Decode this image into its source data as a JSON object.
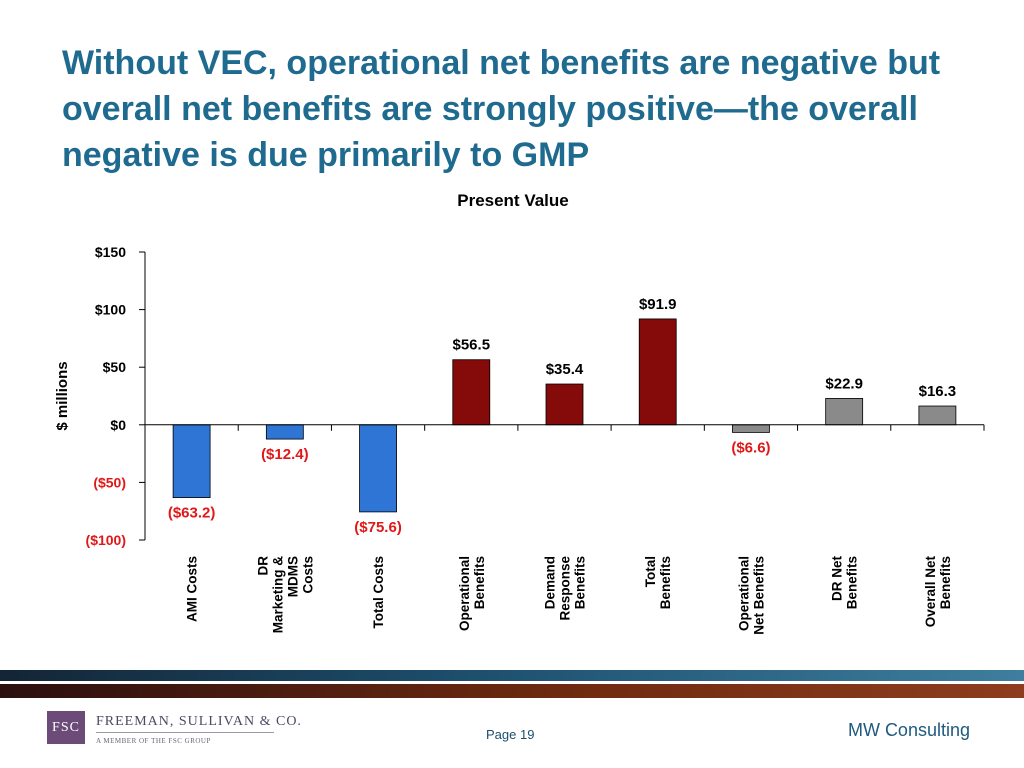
{
  "slide": {
    "title": "Without VEC, operational net benefits are negative but overall net benefits are strongly positive—the overall negative is due primarily to GMP"
  },
  "chart_data": {
    "type": "bar",
    "title": "Present Value",
    "ylabel": "$ millions",
    "ylim": [
      -100,
      150
    ],
    "y_ticks": [
      {
        "value": 150,
        "label": "$150"
      },
      {
        "value": 100,
        "label": "$100"
      },
      {
        "value": 50,
        "label": "$50"
      },
      {
        "value": 0,
        "label": "$0"
      },
      {
        "value": -50,
        "label": "($50)"
      },
      {
        "value": -100,
        "label": "($100)"
      }
    ],
    "categories": [
      [
        "AMI Costs"
      ],
      [
        "DR",
        "Marketing &",
        "MDMS",
        "Costs"
      ],
      [
        "Total Costs"
      ],
      [
        "Operational",
        "Benefits"
      ],
      [
        "Demand",
        "Response",
        "Benefits"
      ],
      [
        "Total",
        "Benefits"
      ],
      [
        "Operational",
        "Net Benefits"
      ],
      [
        "DR Net",
        "Benefits"
      ],
      [
        "Overall Net",
        "Benefits"
      ]
    ],
    "values": [
      -63.2,
      -12.4,
      -75.6,
      56.5,
      35.4,
      91.9,
      -6.6,
      22.9,
      16.3
    ],
    "data_labels": [
      "($63.2)",
      "($12.4)",
      "($75.6)",
      "$56.5",
      "$35.4",
      "$91.9",
      "($6.6)",
      "$22.9",
      "$16.3"
    ],
    "bar_colors": [
      "#2e75d6",
      "#2e75d6",
      "#2e75d6",
      "#850a0a",
      "#850a0a",
      "#850a0a",
      "#8a8a8a",
      "#8a8a8a",
      "#8a8a8a"
    ],
    "negative_label_color": "#e01818",
    "positive_label_color": "#000000",
    "grid": false
  },
  "footer": {
    "logo_initials": "FSC",
    "logo_name": "FREEMAN, SULLIVAN & CO.",
    "logo_tagline": "A MEMBER OF THE FSC GROUP",
    "page_label": "Page 19",
    "company": "MW Consulting"
  }
}
